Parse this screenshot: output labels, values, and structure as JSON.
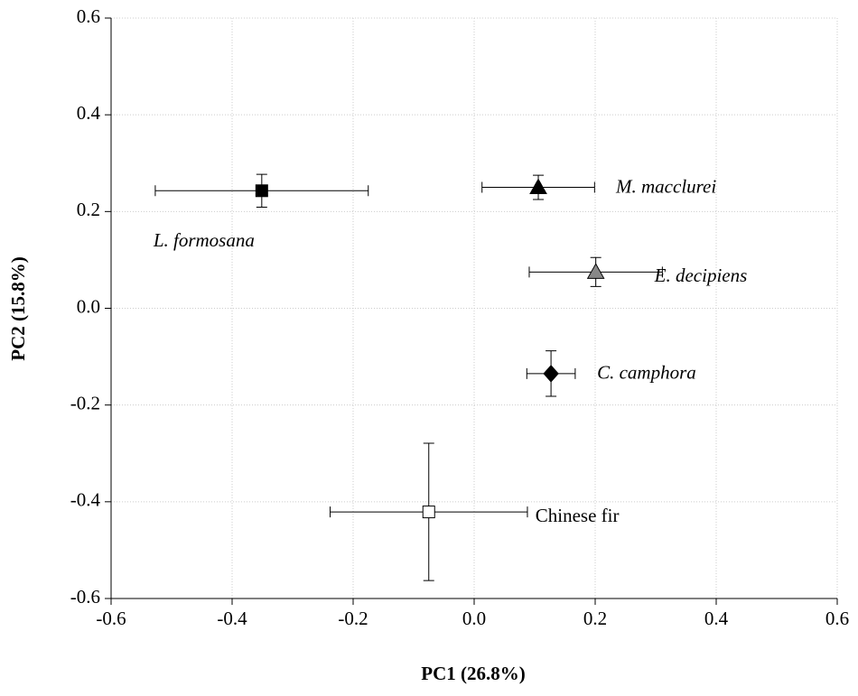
{
  "chart_data": {
    "type": "scatter",
    "xlabel": "PC1 (26.8%)",
    "ylabel": "PC2 (15.8%)",
    "xlim": [
      -0.6,
      0.6
    ],
    "ylim": [
      -0.6,
      0.6
    ],
    "xticks": [
      -0.6,
      -0.4,
      -0.2,
      {
        "value": 0,
        "label": "0.0"
      },
      0.2,
      0.4,
      0.6
    ],
    "yticks": [
      -0.6,
      -0.4,
      -0.2,
      {
        "value": 0,
        "label": "0.0"
      },
      0.2,
      0.4,
      0.6
    ],
    "grid": true,
    "series": [
      {
        "name": "L. formosana",
        "italic": true,
        "marker": "square",
        "color": "#000000",
        "x": [
          -0.351
        ],
        "values": [
          0.243
        ],
        "xerr": [
          0.176
        ],
        "yerr": [
          0.034
        ]
      },
      {
        "name": "M. macclurei",
        "italic": true,
        "marker": "triangle",
        "color": "#000000",
        "x": [
          0.106
        ],
        "values": [
          0.25
        ],
        "xerr": [
          0.093
        ],
        "yerr": [
          0.025
        ]
      },
      {
        "name": "E. decipiens",
        "italic": true,
        "marker": "triangle",
        "color": "#888888",
        "x": [
          0.201
        ],
        "values": [
          0.075
        ],
        "xerr": [
          0.11
        ],
        "yerr": [
          0.03
        ]
      },
      {
        "name": "C. camphora",
        "italic": true,
        "marker": "diamond",
        "color": "#000000",
        "x": [
          0.127
        ],
        "values": [
          -0.135
        ],
        "xerr": [
          0.04
        ],
        "yerr": [
          0.047
        ]
      },
      {
        "name": "Chinese fir",
        "italic": false,
        "marker": "square",
        "color": "#ffffff",
        "x": [
          -0.075
        ],
        "values": [
          -0.421
        ],
        "xerr": [
          0.163
        ],
        "yerr": [
          0.142
        ]
      }
    ]
  }
}
